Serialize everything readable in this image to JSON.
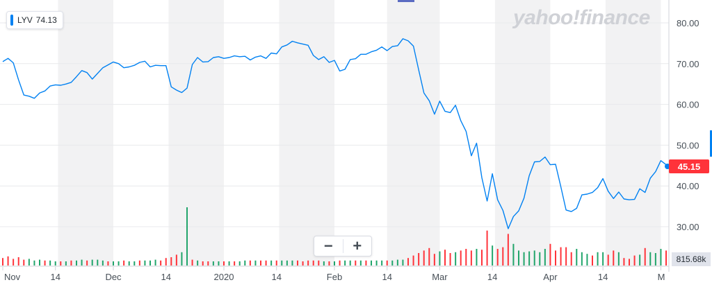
{
  "legend": {
    "ticker": "LYV",
    "value": "74.13"
  },
  "watermark": "yahoo!finance",
  "zoom": {
    "minus_label": "−",
    "plus_label": "+"
  },
  "last_price_label": "45.15",
  "volume_label": "815.68k",
  "colors": {
    "price_line": "#0081f2",
    "volume_up": "#21a56b",
    "volume_down": "#ff333a",
    "price_tag": "#ff333a",
    "band": "#f2f2f3"
  },
  "chart_data": {
    "type": "line",
    "title": "",
    "xlabel": "",
    "ylabel": "",
    "ylim": [
      28,
      85
    ],
    "yticks": [
      "80.00",
      "70.00",
      "60.00",
      "50.00",
      "40.00",
      "30.00"
    ],
    "ytick_values": [
      80,
      70,
      60,
      50,
      40,
      30
    ],
    "xtick_labels": [
      "Nov",
      "14",
      "Dec",
      "14",
      "2020",
      "14",
      "Feb",
      "14",
      "Mar",
      "14",
      "Apr",
      "14",
      "M"
    ],
    "xtick_index": [
      0,
      10,
      21,
      31,
      42,
      52,
      63,
      73,
      83,
      93,
      104,
      114,
      125
    ],
    "series": [
      {
        "name": "LYV",
        "values": [
          70.5,
          71.3,
          70.2,
          66.0,
          62.3,
          62.0,
          61.5,
          62.8,
          63.3,
          64.5,
          64.8,
          64.7,
          65.0,
          65.4,
          66.8,
          68.3,
          67.8,
          66.2,
          67.6,
          69.0,
          69.7,
          70.4,
          70.0,
          69.0,
          69.2,
          69.6,
          70.3,
          70.6,
          69.2,
          69.6,
          69.5,
          69.5,
          64.3,
          63.5,
          62.9,
          64.0,
          69.8,
          71.5,
          70.4,
          70.5,
          71.5,
          71.7,
          71.3,
          71.5,
          71.9,
          71.7,
          71.8,
          70.9,
          71.6,
          71.9,
          71.3,
          72.6,
          72.4,
          74.1,
          74.6,
          75.5,
          75.1,
          74.8,
          74.5,
          72.0,
          71.0,
          71.7,
          70.3,
          70.8,
          68.2,
          68.6,
          71.0,
          71.2,
          72.3,
          72.3,
          72.9,
          73.3,
          74.1,
          73.2,
          74.2,
          74.4,
          76.1,
          75.6,
          74.3,
          68.5,
          62.8,
          60.9,
          57.6,
          60.8,
          58.3,
          58.0,
          59.8,
          56.0,
          53.4,
          47.4,
          50.5,
          42.0,
          36.3,
          43.0,
          36.6,
          34.0,
          29.5,
          32.5,
          33.9,
          37.0,
          42.5,
          45.9,
          46.0,
          47.1,
          45.2,
          45.3,
          39.8,
          34.1,
          33.7,
          34.5,
          37.8,
          38.0,
          38.4,
          39.6,
          41.8,
          38.7,
          36.9,
          38.5,
          36.8,
          36.6,
          36.7,
          39.3,
          38.4,
          41.9,
          43.5,
          46.2,
          45.2
        ]
      }
    ],
    "volume": {
      "label": "815.68k",
      "values": [
        0.45,
        0.55,
        0.4,
        0.5,
        0.35,
        0.4,
        0.3,
        0.35,
        0.3,
        0.3,
        0.25,
        0.25,
        0.25,
        0.3,
        0.3,
        0.35,
        0.3,
        0.35,
        0.35,
        0.3,
        0.25,
        0.25,
        0.25,
        0.3,
        0.25,
        0.25,
        0.3,
        0.3,
        0.3,
        0.35,
        0.3,
        0.45,
        0.5,
        0.65,
        0.8,
        3.5,
        0.35,
        0.3,
        0.25,
        0.25,
        0.25,
        0.25,
        0.25,
        0.25,
        0.25,
        0.25,
        0.3,
        0.3,
        0.3,
        0.3,
        0.3,
        0.3,
        0.3,
        0.3,
        0.3,
        0.3,
        0.3,
        0.25,
        0.3,
        0.3,
        0.3,
        0.25,
        0.25,
        0.25,
        0.3,
        0.3,
        0.3,
        0.3,
        0.3,
        0.3,
        0.3,
        0.3,
        0.3,
        0.3,
        0.3,
        0.35,
        0.35,
        0.45,
        0.6,
        0.75,
        0.9,
        1.05,
        0.7,
        0.85,
        0.95,
        0.75,
        0.8,
        0.9,
        1.0,
        0.9,
        1.0,
        0.95,
        2.1,
        1.2,
        1.0,
        1.1,
        1.9,
        1.3,
        0.9,
        0.8,
        0.85,
        0.9,
        0.8,
        1.0,
        1.3,
        0.9,
        1.1,
        1.1,
        0.8,
        1.0,
        0.8,
        0.7,
        0.6,
        0.8,
        0.8,
        0.65,
        0.9,
        0.8,
        0.45,
        0.4,
        0.6,
        0.65,
        1.05,
        0.8,
        0.75,
        1.0,
        0.9
      ],
      "up_flags": [
        0,
        0,
        0,
        0,
        0,
        1,
        1,
        1,
        0,
        1,
        1,
        0,
        1,
        0,
        1,
        1,
        0,
        1,
        1,
        1,
        0,
        1,
        1,
        0,
        1,
        1,
        0,
        1,
        1,
        1,
        0,
        0,
        0,
        0,
        1,
        1,
        0,
        1,
        0,
        0,
        1,
        1,
        0,
        1,
        0,
        1,
        1,
        0,
        1,
        0,
        0,
        1,
        0,
        1,
        1,
        1,
        0,
        0,
        0,
        0,
        0,
        1,
        0,
        1,
        0,
        1,
        1,
        0,
        1,
        0,
        1,
        1,
        1,
        0,
        1,
        1,
        1,
        0,
        0,
        0,
        0,
        0,
        0,
        1,
        0,
        0,
        1,
        0,
        0,
        0,
        1,
        0,
        0,
        1,
        0,
        0,
        0,
        1,
        1,
        1,
        1,
        1,
        1,
        1,
        0,
        0,
        0,
        0,
        0,
        1,
        1,
        1,
        0,
        1,
        1,
        0,
        0,
        1,
        0,
        0,
        0,
        1,
        0,
        1,
        1,
        1,
        0
      ]
    },
    "grid": true,
    "legend_position": "top-left"
  }
}
